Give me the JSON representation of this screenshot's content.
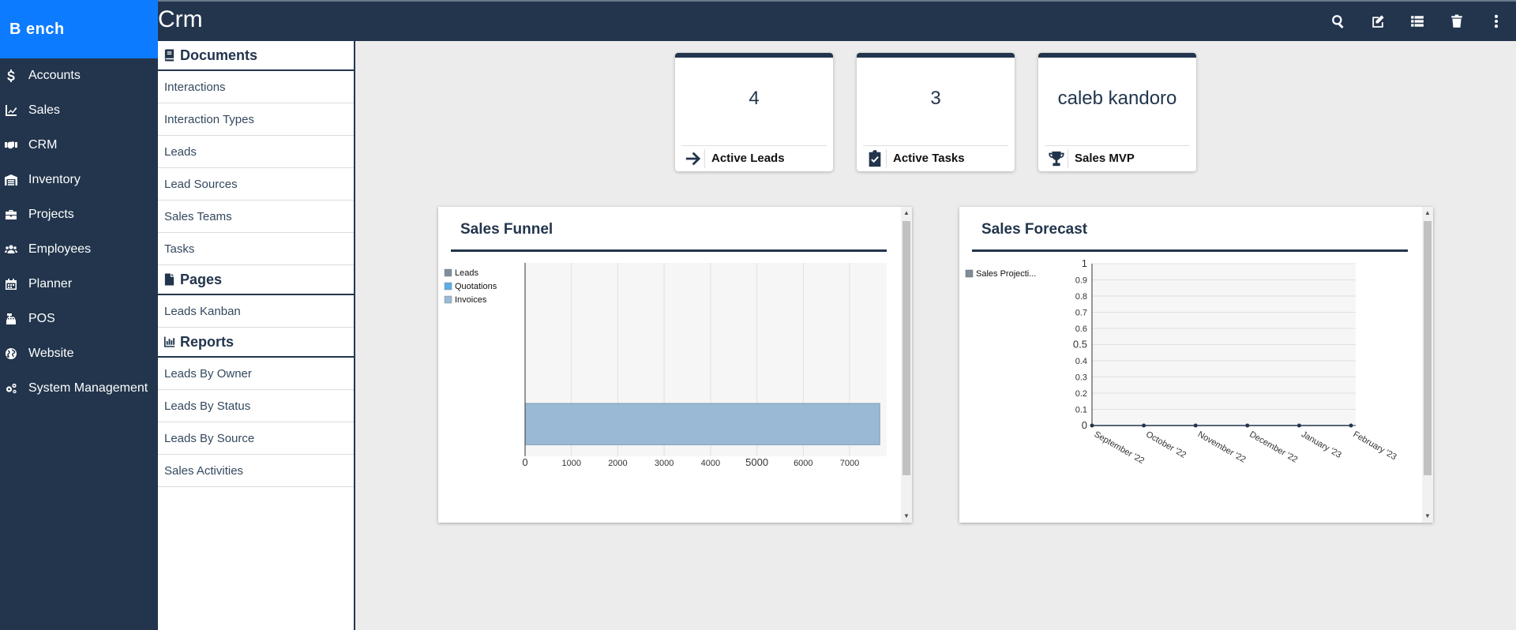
{
  "app": {
    "brand": "B ench",
    "page_title": "Crm"
  },
  "colors": {
    "sidebar": "#22354d",
    "brand": "#0d7bff",
    "accent": "#22354d",
    "funnel_leads": "#7f8c9a",
    "funnel_quotations": "#5aaee8",
    "funnel_invoices": "#9ab9d4"
  },
  "sidebar": {
    "items": [
      {
        "label": "Accounts",
        "icon": "dollar-icon"
      },
      {
        "label": "Sales",
        "icon": "line-chart-icon"
      },
      {
        "label": "CRM",
        "icon": "handshake-icon"
      },
      {
        "label": "Inventory",
        "icon": "warehouse-icon"
      },
      {
        "label": "Projects",
        "icon": "briefcase-icon"
      },
      {
        "label": "Employees",
        "icon": "users-icon"
      },
      {
        "label": "Planner",
        "icon": "calendar-icon"
      },
      {
        "label": "POS",
        "icon": "cash-register-icon"
      },
      {
        "label": "Website",
        "icon": "globe-icon"
      },
      {
        "label": "System Management",
        "icon": "gears-icon"
      }
    ]
  },
  "toolbar": {
    "actions": [
      "search-icon",
      "edit-icon",
      "list-icon",
      "trash-icon",
      "more-vertical-icon"
    ]
  },
  "submenu": {
    "sections": [
      {
        "title": "Documents",
        "icon": "book-icon",
        "items": [
          "Interactions",
          "Interaction Types",
          "Leads",
          "Lead Sources",
          "Sales Teams",
          "Tasks"
        ]
      },
      {
        "title": "Pages",
        "icon": "file-icon",
        "items": [
          "Leads Kanban"
        ]
      },
      {
        "title": "Reports",
        "icon": "bar-chart-icon",
        "items": [
          "Leads By Owner",
          "Leads By Status",
          "Leads By Source",
          "Sales Activities"
        ]
      }
    ]
  },
  "kpis": [
    {
      "value": "4",
      "label": "Active Leads",
      "icon": "arrow-right-icon"
    },
    {
      "value": "3",
      "label": "Active Tasks",
      "icon": "clipboard-check-icon"
    },
    {
      "value": "caleb kandoro",
      "label": "Sales MVP",
      "icon": "trophy-icon"
    }
  ],
  "chart_data": [
    {
      "type": "bar",
      "orientation": "horizontal",
      "title": "Sales Funnel",
      "legend": [
        "Leads",
        "Quotations",
        "Invoices"
      ],
      "legend_position": "left",
      "series": [
        {
          "name": "Leads",
          "value": 0
        },
        {
          "name": "Quotations",
          "value": 0
        },
        {
          "name": "Invoices",
          "value": 7650
        }
      ],
      "xlim": [
        0,
        7800
      ],
      "x_ticks": [
        "0",
        "1000",
        "2000",
        "3000",
        "4000",
        "5000",
        "6000",
        "7000"
      ],
      "grid": true
    },
    {
      "type": "line",
      "title": "Sales Forecast",
      "legend": [
        "Sales Projecti..."
      ],
      "legend_position": "left",
      "categories": [
        "September '22",
        "October '22",
        "November '22",
        "December '22",
        "January '23",
        "February '23"
      ],
      "series": [
        {
          "name": "Sales Projecti...",
          "values": [
            0,
            0,
            0,
            0,
            0,
            0
          ]
        }
      ],
      "ylim": [
        0,
        1
      ],
      "y_ticks": [
        "0",
        "0.1",
        "0.2",
        "0.3",
        "0.4",
        "0.5",
        "0.6",
        "0.7",
        "0.8",
        "0.9",
        "1"
      ],
      "grid": true
    }
  ]
}
